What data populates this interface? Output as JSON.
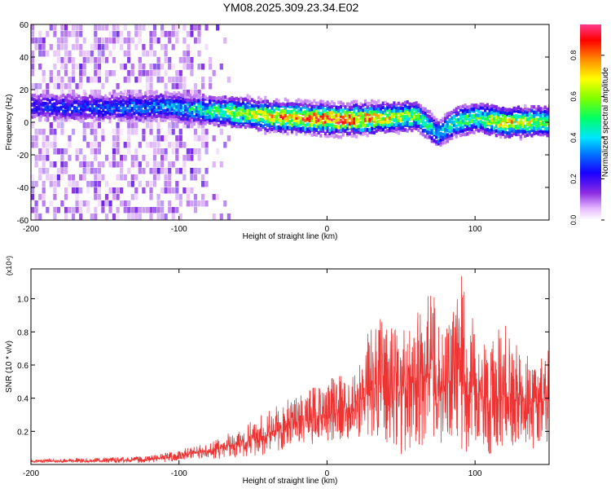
{
  "title": "YM08.2025.309.23.34.E02",
  "chart_data": [
    {
      "type": "heatmap",
      "title": "YM08.2025.309.23.34.E02",
      "xlabel": "Height of straight line (km)",
      "ylabel": "Frequency (Hz)",
      "xlim": [
        -200,
        150
      ],
      "ylim": [
        -60,
        60
      ],
      "x_ticks": [
        -200,
        -100,
        0,
        100
      ],
      "y_ticks": [
        60,
        40,
        20,
        0,
        -20,
        -40,
        -60
      ],
      "colorbar": {
        "label": "Normalized spectral amplitude",
        "range": [
          0.0,
          0.95
        ],
        "ticks": [
          0.0,
          0.2,
          0.4,
          0.6,
          0.8
        ]
      },
      "ridge": {
        "description": "dominant spectral band",
        "x": [
          -200,
          -150,
          -110,
          -90,
          -60,
          -40,
          -20,
          0,
          20,
          40,
          60,
          75,
          85,
          100,
          120,
          150
        ],
        "center_freq": [
          9,
          8,
          9,
          7,
          5,
          3,
          2,
          1,
          1,
          2,
          3,
          -8,
          -1,
          2,
          -1,
          0
        ],
        "peak_amplitude": [
          0.25,
          0.3,
          0.35,
          0.45,
          0.6,
          0.75,
          0.8,
          0.95,
          0.85,
          0.7,
          0.6,
          0.4,
          0.5,
          0.55,
          0.75,
          0.55
        ]
      },
      "noise_region_x": [
        -200,
        -95
      ]
    },
    {
      "type": "line",
      "xlabel": "Height of straight line (km)",
      "ylabel": "SNR (10 * v/v)",
      "y_scale_label": "(x10⁴)",
      "xlim": [
        -200,
        150
      ],
      "ylim": [
        0,
        1.18
      ],
      "x_ticks": [
        -200,
        -100,
        0,
        100
      ],
      "y_ticks": [
        0.2,
        0.4,
        0.6,
        0.8,
        1.0
      ],
      "series": [
        {
          "name": "SNR",
          "color": "#ee3333",
          "envelope_x": [
            -200,
            -160,
            -120,
            -100,
            -80,
            -60,
            -40,
            -20,
            0,
            20,
            30,
            40,
            50,
            60,
            70,
            80,
            90,
            100,
            110,
            120,
            130,
            140,
            150
          ],
          "envelope_mean": [
            0.02,
            0.02,
            0.03,
            0.05,
            0.08,
            0.12,
            0.18,
            0.26,
            0.3,
            0.36,
            0.45,
            0.45,
            0.48,
            0.52,
            0.55,
            0.42,
            0.5,
            0.45,
            0.36,
            0.42,
            0.38,
            0.36,
            0.4
          ],
          "envelope_high": [
            0.03,
            0.04,
            0.05,
            0.09,
            0.13,
            0.22,
            0.33,
            0.42,
            0.52,
            0.58,
            0.92,
            0.85,
            0.8,
            0.9,
            1.08,
            0.8,
            1.18,
            0.84,
            0.72,
            0.88,
            0.72,
            0.62,
            0.7
          ],
          "envelope_low": [
            0.01,
            0.01,
            0.01,
            0.02,
            0.03,
            0.04,
            0.06,
            0.1,
            0.14,
            0.16,
            0.16,
            0.12,
            0.06,
            0.1,
            0.14,
            0.08,
            0.02,
            0.12,
            0.06,
            0.1,
            0.12,
            0.08,
            0.1
          ]
        }
      ]
    }
  ]
}
